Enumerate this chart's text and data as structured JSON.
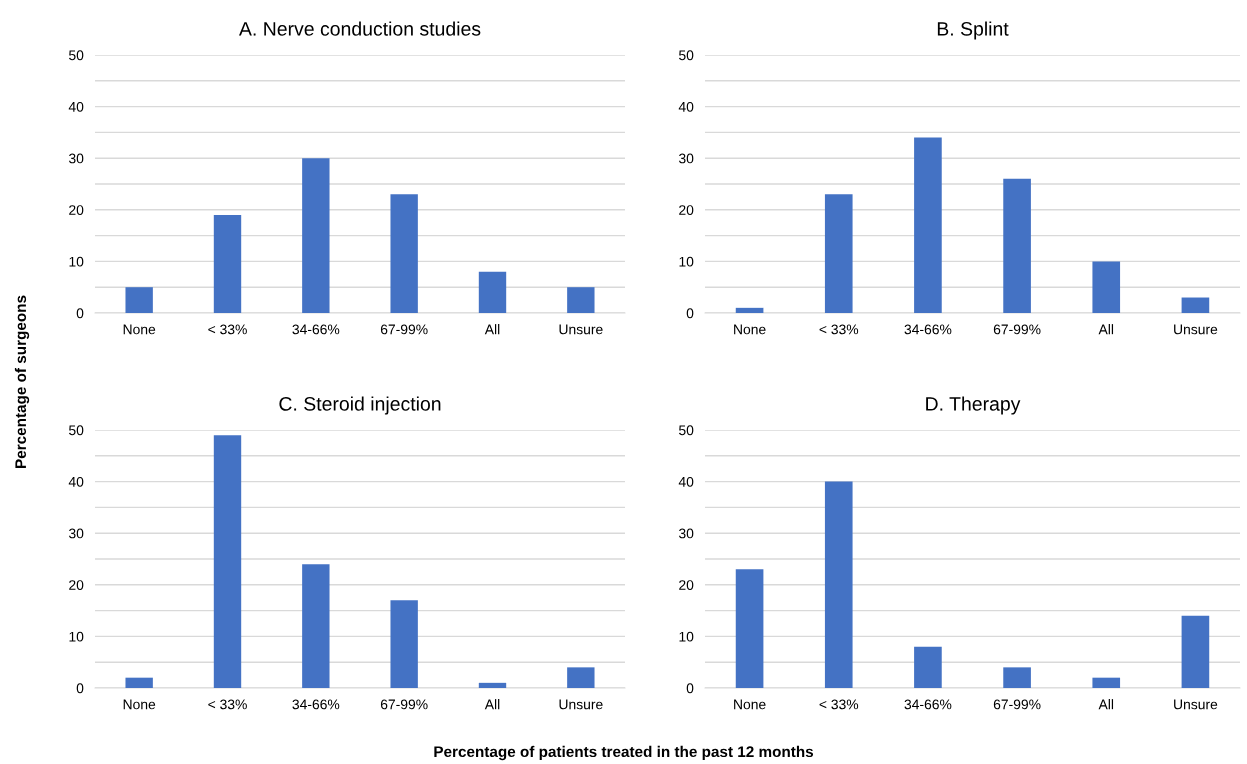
{
  "chart_data": [
    {
      "type": "bar",
      "title": "A. Nerve conduction studies",
      "ylabel": "Percentage of surgeons",
      "xlabel": "Percentage of patients treated in the past 12 months",
      "categories": [
        "None",
        "< 33%",
        "34-66%",
        "67-99%",
        "All",
        "Unsure"
      ],
      "values": [
        5,
        19,
        30,
        23,
        8,
        5
      ],
      "color": "#4472c4",
      "ylim": [
        0,
        50
      ],
      "yticks": [
        0,
        {
          "value": 5,
          "label": null
        },
        10,
        {
          "value": 15,
          "label": null
        },
        20,
        {
          "value": 25,
          "label": null
        },
        30,
        {
          "value": 35,
          "label": null
        },
        40,
        {
          "value": 45,
          "label": null
        },
        50
      ],
      "grid": "y"
    },
    {
      "type": "bar",
      "title": "B. Splint",
      "categories": [
        "None",
        "< 33%",
        "34-66%",
        "67-99%",
        "All",
        "Unsure"
      ],
      "values": [
        1,
        23,
        34,
        26,
        10,
        3
      ],
      "color": "#4472c4",
      "ylim": [
        0,
        50
      ],
      "yticks": [
        0,
        {
          "value": 5,
          "label": null
        },
        10,
        {
          "value": 15,
          "label": null
        },
        20,
        {
          "value": 25,
          "label": null
        },
        30,
        {
          "value": 35,
          "label": null
        },
        40,
        {
          "value": 45,
          "label": null
        },
        50
      ],
      "grid": "y"
    },
    {
      "type": "bar",
      "title": "C. Steroid injection",
      "categories": [
        "None",
        "< 33%",
        "34-66%",
        "67-99%",
        "All",
        "Unsure"
      ],
      "values": [
        2,
        49,
        24,
        17,
        1,
        4
      ],
      "color": "#4472c4",
      "ylim": [
        0,
        50
      ],
      "yticks": [
        0,
        {
          "value": 5,
          "label": null
        },
        10,
        {
          "value": 15,
          "label": null
        },
        20,
        {
          "value": 25,
          "label": null
        },
        30,
        {
          "value": 35,
          "label": null
        },
        40,
        {
          "value": 45,
          "label": null
        },
        50
      ],
      "grid": "y"
    },
    {
      "type": "bar",
      "title": "D. Therapy",
      "categories": [
        "None",
        "< 33%",
        "34-66%",
        "67-99%",
        "All",
        "Unsure"
      ],
      "values": [
        23,
        40,
        8,
        4,
        2,
        14
      ],
      "color": "#4472c4",
      "ylim": [
        0,
        50
      ],
      "yticks": [
        0,
        {
          "value": 5,
          "label": null
        },
        10,
        {
          "value": 15,
          "label": null
        },
        20,
        {
          "value": 25,
          "label": null
        },
        30,
        {
          "value": 35,
          "label": null
        },
        40,
        {
          "value": 45,
          "label": null
        },
        50
      ],
      "grid": "y"
    }
  ]
}
